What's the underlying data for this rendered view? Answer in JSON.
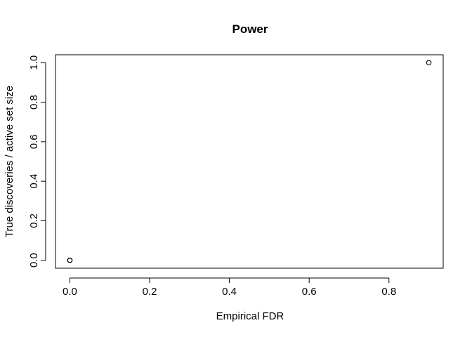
{
  "chart_data": {
    "type": "scatter",
    "title": "Power",
    "xlabel": "Empirical FDR",
    "ylabel": "True discoveries / active set size",
    "xlim": [
      -0.036,
      0.936
    ],
    "ylim": [
      -0.04,
      1.04
    ],
    "xticks": [
      0,
      0.2,
      0.4,
      0.6,
      0.8
    ],
    "xtick_labels": [
      "0.0",
      "0.2",
      "0.4",
      "0.6",
      "0.8"
    ],
    "yticks": [
      0,
      0.2,
      0.4,
      0.6,
      0.8,
      1.0
    ],
    "ytick_labels": [
      "0.0",
      "0.2",
      "0.4",
      "0.6",
      "0.8",
      "1.0"
    ],
    "grid": false,
    "marker": "open-circle",
    "points": [
      {
        "x": 0.0,
        "y": 0.0
      },
      {
        "x": 0.0,
        "y": 0.0
      },
      {
        "x": 0.0,
        "y": 0.0
      },
      {
        "x": 0.9,
        "y": 1.0
      }
    ]
  }
}
